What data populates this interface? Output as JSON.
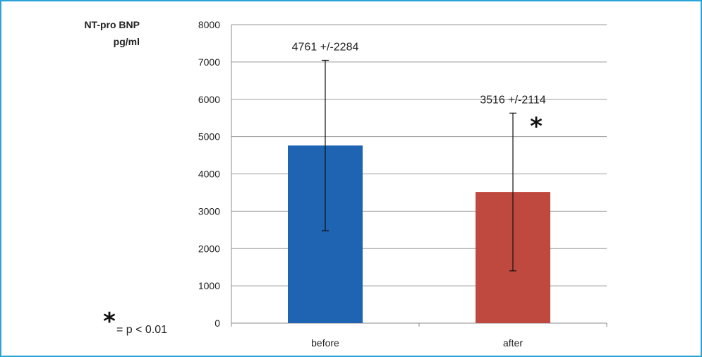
{
  "chart_data": {
    "type": "bar",
    "ylabel_line1": "NT-pro BNP",
    "ylabel_line2": "pg/ml",
    "categories": [
      "before",
      "after"
    ],
    "values": [
      4761,
      3516
    ],
    "errors": [
      2284,
      2114
    ],
    "data_labels": [
      "4761 +/-2284",
      "3516 +/-2114"
    ],
    "bar_colors": [
      "#1f63b3",
      "#c0493f"
    ],
    "ylim": [
      0,
      8000
    ],
    "yticks": [
      0,
      1000,
      2000,
      3000,
      4000,
      5000,
      6000,
      7000,
      8000
    ],
    "grid": true,
    "significance_marker": "*",
    "legend_star": "*",
    "legend_text": "= p < 0.01"
  },
  "frame_color": "#29a3d8"
}
